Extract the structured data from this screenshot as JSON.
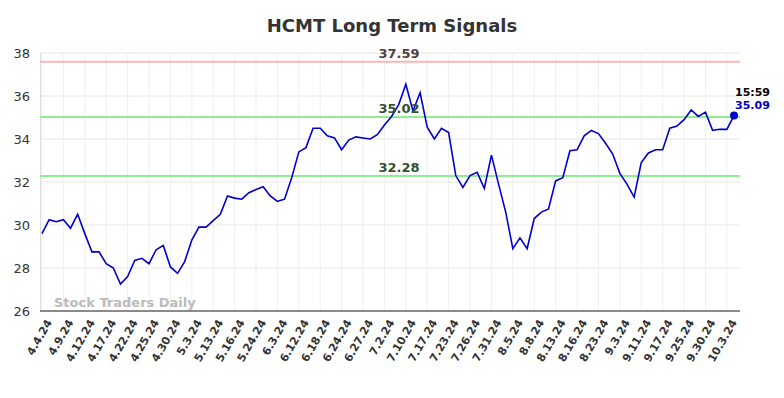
{
  "chart_data": {
    "type": "line",
    "title": "HCMT Long Term Signals",
    "categories": [
      "4.4.24",
      null,
      null,
      "4.9.24",
      null,
      null,
      "4.12.24",
      null,
      null,
      "4.17.24",
      null,
      null,
      "4.22.24",
      null,
      null,
      "4.25.24",
      null,
      null,
      "4.30.24",
      null,
      null,
      "5.3.24",
      null,
      null,
      "5.13.24",
      null,
      null,
      "5.16.24",
      null,
      null,
      "5.24.24",
      null,
      null,
      "6.3.24",
      null,
      null,
      "6.12.24",
      null,
      null,
      "6.18.24",
      null,
      null,
      "6.24.24",
      null,
      null,
      "6.27.24",
      null,
      null,
      "7.2.24",
      null,
      null,
      "7.10.24",
      null,
      null,
      "7.17.24",
      null,
      null,
      "7.23.24",
      null,
      null,
      "7.26.24",
      null,
      null,
      "7.31.24",
      null,
      null,
      "8.5.24",
      null,
      null,
      "8.8.24",
      null,
      null,
      "8.13.24",
      null,
      null,
      "8.16.24",
      null,
      null,
      "8.23.24",
      null,
      null,
      "9.3.24",
      null,
      null,
      "9.11.24",
      null,
      null,
      "9.17.24",
      null,
      null,
      "9.25.24",
      null,
      null,
      "9.30.24",
      null,
      null,
      "10.3.24",
      null
    ],
    "values": [
      29.6,
      30.25,
      30.15,
      30.25,
      29.85,
      30.5,
      29.6,
      28.75,
      28.75,
      28.2,
      28.0,
      27.25,
      27.6,
      28.35,
      28.45,
      28.2,
      28.85,
      29.05,
      28.05,
      27.75,
      28.3,
      29.3,
      29.9,
      29.9,
      30.2,
      30.5,
      31.35,
      31.25,
      31.2,
      31.5,
      31.65,
      31.78,
      31.35,
      31.1,
      31.2,
      32.2,
      33.4,
      33.6,
      34.5,
      34.5,
      34.15,
      34.05,
      33.5,
      33.95,
      34.1,
      34.05,
      34.0,
      34.2,
      34.65,
      35.05,
      35.6,
      36.55,
      35.3,
      36.15,
      34.55,
      34.0,
      34.5,
      34.3,
      32.3,
      31.75,
      32.3,
      32.45,
      31.7,
      33.25,
      31.9,
      30.6,
      28.9,
      29.4,
      28.9,
      30.3,
      30.6,
      30.75,
      32.05,
      32.2,
      33.45,
      33.5,
      34.15,
      34.4,
      34.25,
      33.8,
      33.3,
      32.4,
      31.9,
      31.3,
      32.9,
      33.35,
      33.5,
      33.5,
      34.5,
      34.6,
      34.9,
      35.35,
      35.05,
      35.25,
      34.4,
      34.45,
      34.45,
      35.09
    ],
    "color": "#0000cc",
    "ylim": [
      26,
      38
    ],
    "yticks": [
      26,
      28,
      30,
      32,
      34,
      36,
      38
    ],
    "grid": true,
    "reference_lines": [
      {
        "value": 37.59,
        "color": "#ffb3b3"
      },
      {
        "value": 35.02,
        "color": "#90ee90"
      },
      {
        "value": 32.28,
        "color": "#90ee90"
      }
    ],
    "annotations": [
      {
        "text": "15:59"
      }
    ],
    "watermark": "Stock Traders Daily"
  }
}
